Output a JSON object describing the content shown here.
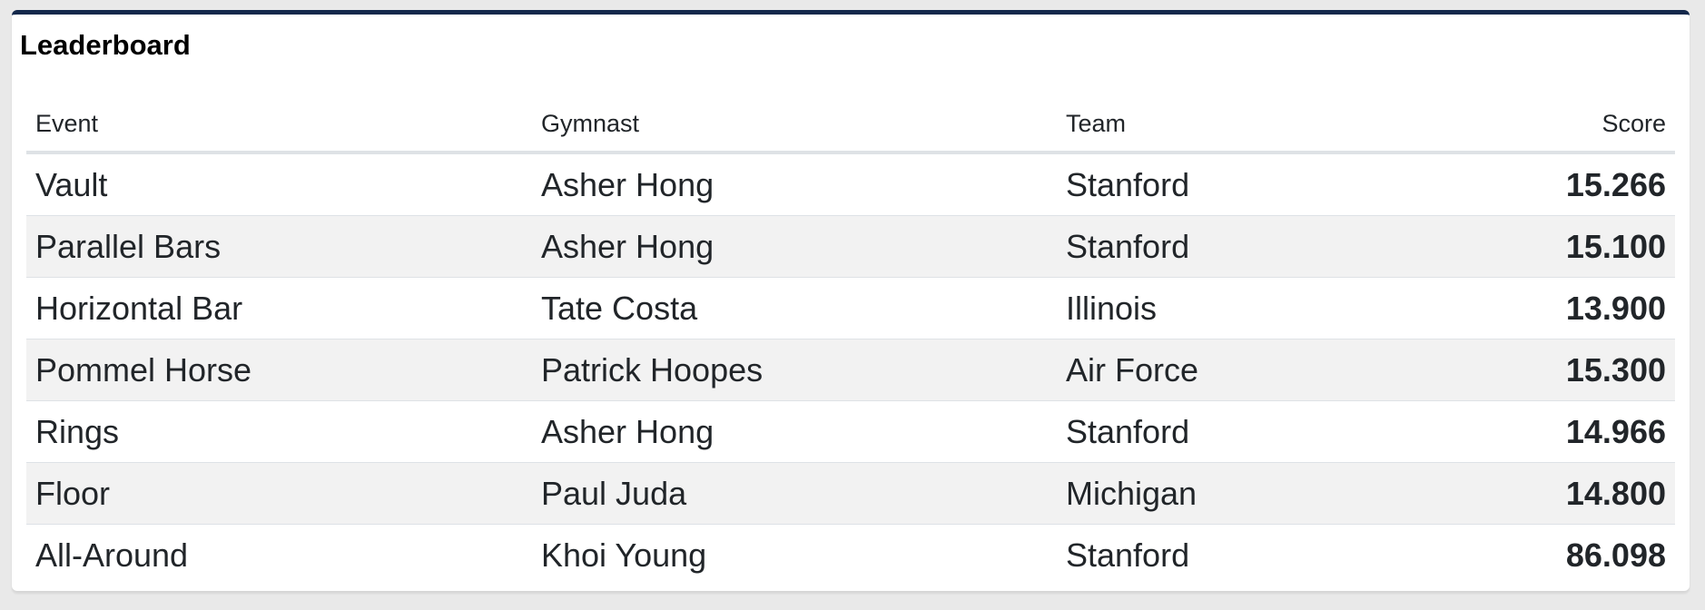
{
  "title": "Leaderboard",
  "columns": {
    "event": "Event",
    "gymnast": "Gymnast",
    "team": "Team",
    "score": "Score"
  },
  "rows": [
    {
      "event": "Vault",
      "gymnast": "Asher Hong",
      "team": "Stanford",
      "score": "15.266"
    },
    {
      "event": "Parallel Bars",
      "gymnast": "Asher Hong",
      "team": "Stanford",
      "score": "15.100"
    },
    {
      "event": "Horizontal Bar",
      "gymnast": "Tate Costa",
      "team": "Illinois",
      "score": "13.900"
    },
    {
      "event": "Pommel Horse",
      "gymnast": "Patrick Hoopes",
      "team": "Air Force",
      "score": "15.300"
    },
    {
      "event": "Rings",
      "gymnast": "Asher Hong",
      "team": "Stanford",
      "score": "14.966"
    },
    {
      "event": "Floor",
      "gymnast": "Paul Juda",
      "team": "Michigan",
      "score": "14.800"
    },
    {
      "event": "All-Around",
      "gymnast": "Khoi Young",
      "team": "Stanford",
      "score": "86.098"
    }
  ],
  "colors": {
    "accent": "#13284b",
    "stripe": "#f2f2f2"
  }
}
